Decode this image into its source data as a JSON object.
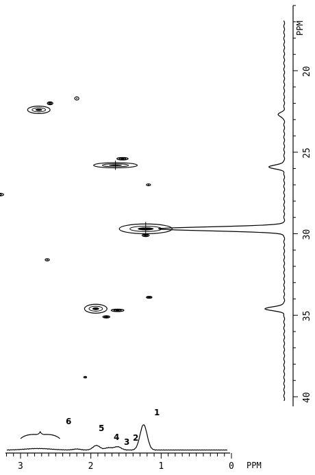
{
  "chart_data": {
    "type": "scatter",
    "subtype": "2D HETCOR NMR contour plot with 1H projection (bottom) and 13C projection (right)",
    "x_axis": {
      "label": "PPM",
      "ticks": [
        "3",
        "2",
        "1",
        "0"
      ],
      "range": [
        3.7,
        0
      ],
      "reversed": true
    },
    "y_axis": {
      "label": "PPM",
      "ticks": [
        "20",
        "25",
        "30",
        "35",
        "40"
      ],
      "range": [
        16.5,
        41.5
      ]
    },
    "cross_peaks": [
      {
        "x": 2.74,
        "y": 22.4,
        "w": 0.32,
        "h": 0.45
      },
      {
        "x": 2.58,
        "y": 22.0,
        "w": 0.08,
        "h": 0.18
      },
      {
        "x": 2.2,
        "y": 21.7,
        "w": 0.06,
        "h": 0.2
      },
      {
        "x": 1.65,
        "y": 25.8,
        "w": 0.62,
        "h": 0.32
      },
      {
        "x": 1.55,
        "y": 25.4,
        "w": 0.16,
        "h": 0.15
      },
      {
        "x": 1.18,
        "y": 27.0,
        "w": 0.06,
        "h": 0.12
      },
      {
        "x": 3.32,
        "y": 27.6,
        "w": 0.16,
        "h": 0.18
      },
      {
        "x": 1.22,
        "y": 29.7,
        "w": 0.75,
        "h": 0.6
      },
      {
        "x": 1.22,
        "y": 30.1,
        "w": 0.1,
        "h": 0.15
      },
      {
        "x": 2.62,
        "y": 31.6,
        "w": 0.06,
        "h": 0.14
      },
      {
        "x": 1.17,
        "y": 33.9,
        "w": 0.08,
        "h": 0.12
      },
      {
        "x": 1.93,
        "y": 34.6,
        "w": 0.32,
        "h": 0.55
      },
      {
        "x": 1.62,
        "y": 34.7,
        "w": 0.18,
        "h": 0.15
      },
      {
        "x": 1.78,
        "y": 35.1,
        "w": 0.1,
        "h": 0.14
      },
      {
        "x": 2.08,
        "y": 38.8,
        "w": 0.04,
        "h": 0.08
      }
    ],
    "c13_projection_peaks": [
      {
        "ppm": 22.7,
        "intensity": 0.05
      },
      {
        "ppm": 25.9,
        "intensity": 0.12
      },
      {
        "ppm": 29.7,
        "intensity": 1.0
      },
      {
        "ppm": 34.6,
        "intensity": 0.15
      }
    ],
    "h1_projection_peaks": [
      {
        "ppm": 1.25,
        "intensity": 1.0,
        "label": "1"
      },
      {
        "ppm": 1.62,
        "intensity": 0.13,
        "label": "2"
      },
      {
        "ppm": 1.75,
        "intensity": 0.09,
        "label": "3"
      },
      {
        "ppm": 1.92,
        "intensity": 0.18,
        "label": "4"
      },
      {
        "ppm": 2.2,
        "intensity": 0.04,
        "label": "5"
      },
      {
        "ppm": 2.75,
        "intensity": 0.06,
        "label": "6"
      }
    ]
  }
}
